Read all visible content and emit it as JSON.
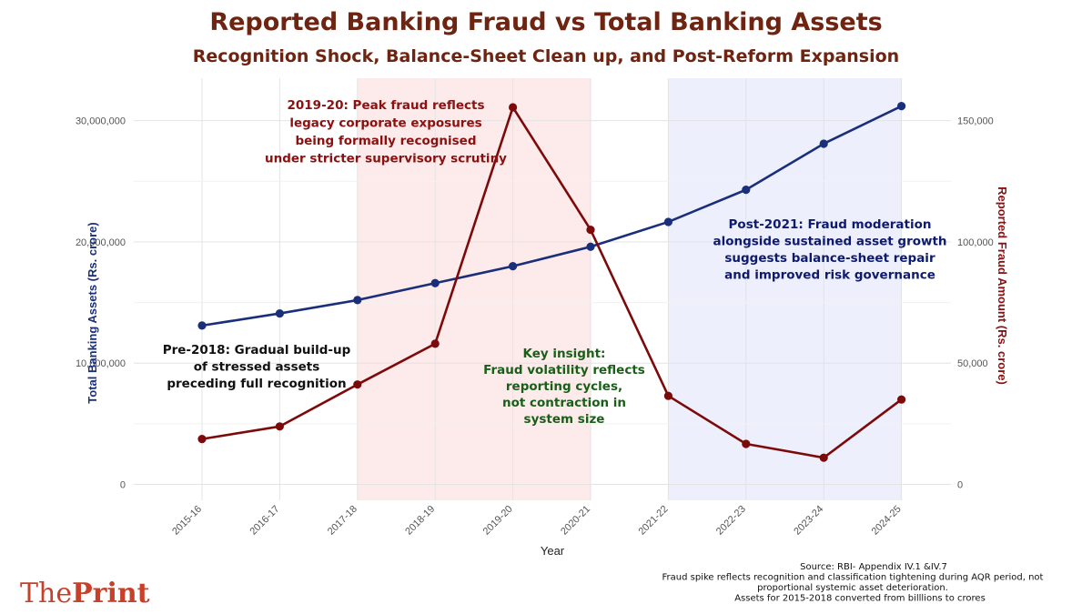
{
  "chart_data": {
    "type": "line",
    "title": "Reported Banking Fraud vs Total Banking Assets",
    "subtitle": "Recognition Shock, Balance-Sheet Clean up, and Post-Reform Expansion",
    "xlabel": "Year",
    "ylabel_left": "Total Banking Assets (Rs. crore)",
    "ylabel_right": "Reported Fraud Amount (Rs. crore)",
    "categories": [
      "2015-16",
      "2016-17",
      "2017-18",
      "2018-19",
      "2019-20",
      "2020-21",
      "2021-22",
      "2022-23",
      "2023-24",
      "2024-25"
    ],
    "ylim_left": [
      0,
      33500000
    ],
    "ylim_right": [
      0,
      167500
    ],
    "yticks_left": [
      0,
      10000000,
      20000000,
      30000000
    ],
    "yticks_left_labels": [
      "0",
      "10,000,000",
      "20,000,000",
      "30,000,000"
    ],
    "yticks_right": [
      0,
      50000,
      100000,
      150000
    ],
    "yticks_right_labels": [
      "0",
      "50,000",
      "100,000",
      "150,000"
    ],
    "series": [
      {
        "axis": "left",
        "color": "#1a2f7a",
        "values": [
          13100000,
          14100000,
          15200000,
          16600000,
          18000000,
          19600000,
          21650000,
          24300000,
          28100000,
          31200000
        ]
      },
      {
        "axis": "right",
        "color": "#7d0a0a",
        "values": [
          18700,
          23900,
          41200,
          58000,
          155500,
          105000,
          36500,
          16700,
          11000,
          35000
        ]
      }
    ],
    "shaded_regions": [
      {
        "from": "2017-18",
        "to": "2020-21",
        "color": "#fdeaea"
      },
      {
        "from": "2021-22",
        "to": "2024-25",
        "color": "#eeeffc"
      }
    ],
    "grid": true,
    "annotations": [
      {
        "color": "#8b1010",
        "lines": [
          "2019-20: Peak fraud reflects",
          "legacy corporate exposures",
          "being formally recognised",
          "under stricter supervisory scrutiny"
        ]
      },
      {
        "color": "#0d1a6e",
        "lines": [
          "Post-2021: Fraud moderation",
          "alongside sustained asset growth",
          "suggests balance-sheet repair",
          "and improved risk governance"
        ]
      },
      {
        "color": "#111111",
        "lines": [
          "Pre-2018: Gradual build-up",
          "of stressed assets",
          "preceding full recognition"
        ]
      },
      {
        "color": "#1a5e1a",
        "lines": [
          "Key insight:",
          "Fraud volatility reflects",
          "reporting cycles,",
          "not contraction in",
          "system size"
        ]
      }
    ],
    "source_lines": [
      "Source: RBI- Appendix IV.1 &IV.7",
      "Fraud spike reflects recognition and classification tightening during AQR period, not",
      "proportional systemic asset deterioration.",
      "Assets for 2015-2018 converted from billlions to crores"
    ]
  },
  "brand": {
    "part1": "The",
    "part2": "Print",
    "color": "#c8402a"
  }
}
